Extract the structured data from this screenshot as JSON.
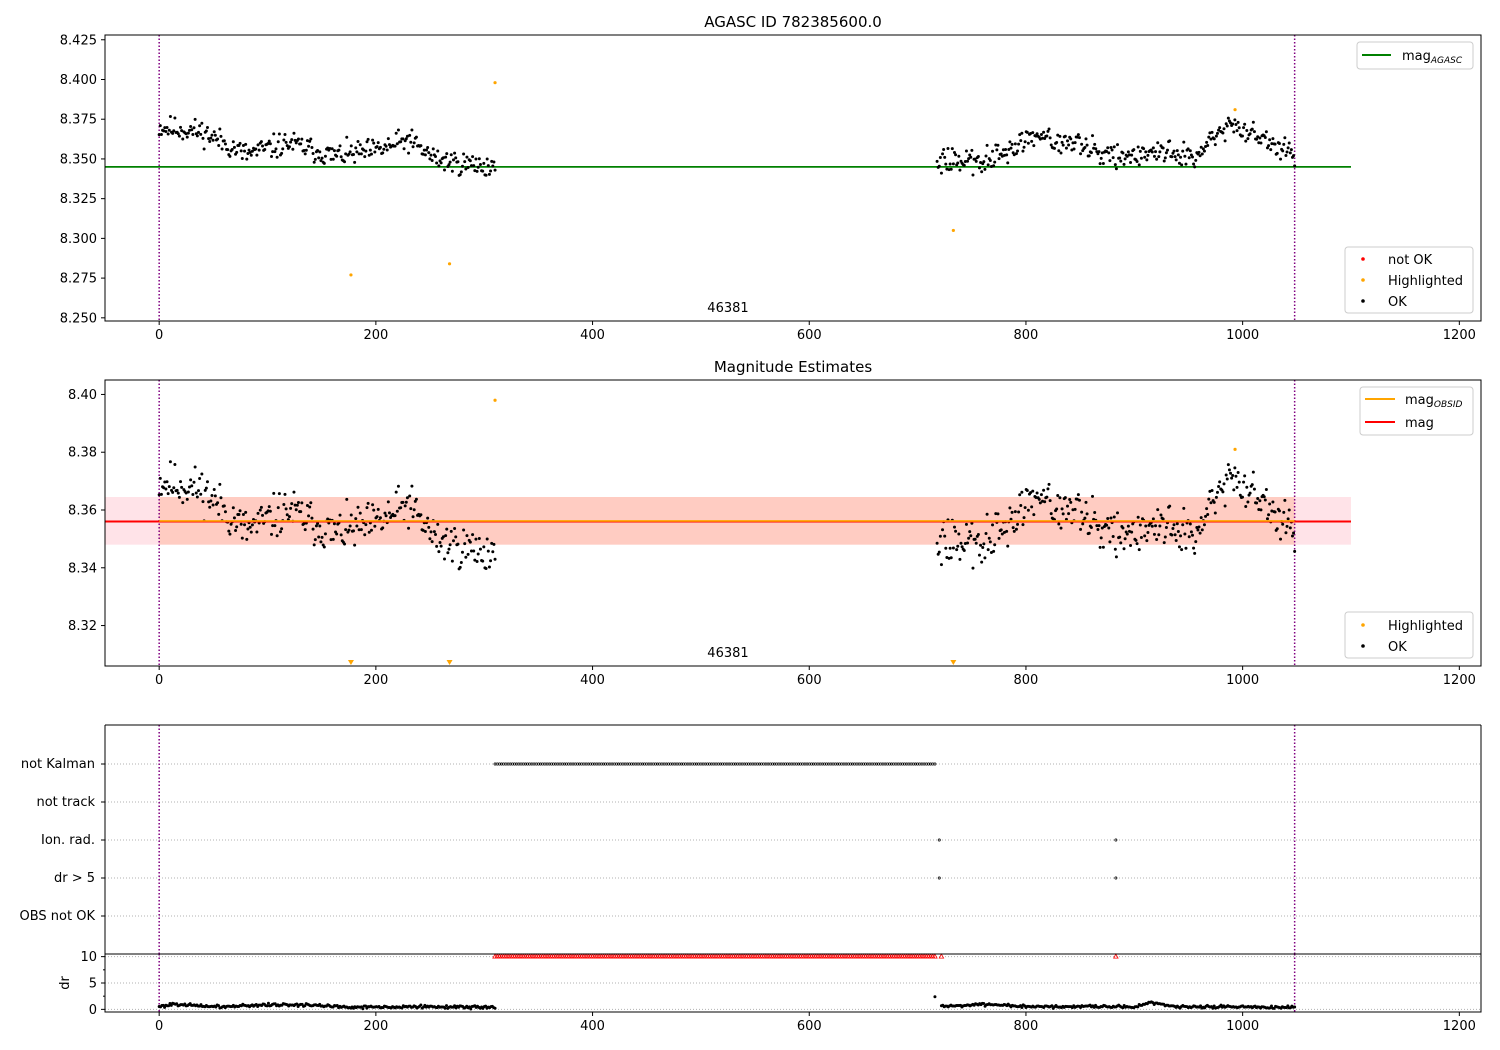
{
  "figure": {
    "colors": {
      "ok": "#000000",
      "highlighted": "#ffa500",
      "not_ok": "#ff0000",
      "mag_agasc": "#008000",
      "mag": "#ff0000",
      "mag_obsid": "#ffa500",
      "vline": "#800080",
      "band_outer": "#ffc0cb",
      "band_inner": "#ffa07a",
      "flag_grid": "#b0b0b0"
    }
  },
  "chart_data": [
    {
      "id": "top",
      "type": "scatter",
      "title": "AGASC ID 782385600.0",
      "xlim": [
        -50,
        1220
      ],
      "ylim": [
        8.248,
        8.428
      ],
      "x_ticks": [
        0,
        200,
        400,
        600,
        800,
        1000,
        1200
      ],
      "y_ticks": [
        8.25,
        8.275,
        8.3,
        8.325,
        8.35,
        8.375,
        8.4,
        8.425
      ],
      "y_tick_labels": [
        "8.250",
        "8.275",
        "8.300",
        "8.325",
        "8.350",
        "8.375",
        "8.400",
        "8.425"
      ],
      "obsid_label": {
        "text": "46381",
        "x": 525
      },
      "vlines": [
        0,
        1048
      ],
      "hlines": [
        {
          "name": "mag_AGASC",
          "y": 8.345,
          "x": [
            -50,
            1100
          ],
          "color": "#008000"
        }
      ],
      "legend_lines": [
        {
          "label": "mag",
          "sub": "AGASC",
          "color": "#008000"
        }
      ],
      "legend_markers": [
        {
          "label": "not OK",
          "color": "#ff0000"
        },
        {
          "label": "Highlighted",
          "color": "#ffa500"
        },
        {
          "label": "OK",
          "color": "#000000"
        }
      ],
      "series": [
        {
          "name": "OK",
          "color": "#000000",
          "segments": [
            {
              "x": [
                0,
                310
              ],
              "mid": [
                [
                  0,
                  8.37
                ],
                [
                  40,
                  8.367
                ],
                [
                  80,
                  8.353
                ],
                [
                  120,
                  8.36
                ],
                [
                  160,
                  8.352
                ],
                [
                  200,
                  8.355
                ],
                [
                  230,
                  8.362
                ],
                [
                  255,
                  8.35
                ],
                [
                  280,
                  8.347
                ],
                [
                  310,
                  8.345
                ]
              ],
              "spread": 0.0065,
              "n": 300
            },
            {
              "x": [
                718,
                1048
              ],
              "mid": [
                [
                  718,
                  8.35
                ],
                [
                  760,
                  8.348
                ],
                [
                  800,
                  8.362
                ],
                [
                  840,
                  8.362
                ],
                [
                  880,
                  8.35
                ],
                [
                  920,
                  8.355
                ],
                [
                  960,
                  8.352
                ],
                [
                  990,
                  8.372
                ],
                [
                  1010,
                  8.365
                ],
                [
                  1048,
                  8.352
                ]
              ],
              "spread": 0.0065,
              "n": 330
            }
          ]
        },
        {
          "name": "Highlighted",
          "color": "#ffa500",
          "points": [
            [
              177,
              8.277
            ],
            [
              268,
              8.284
            ],
            [
              310,
              8.398
            ],
            [
              733,
              8.305
            ],
            [
              993,
              8.381
            ]
          ]
        }
      ]
    },
    {
      "id": "mid",
      "type": "scatter",
      "title": "Magnitude Estimates",
      "xlim": [
        -50,
        1220
      ],
      "ylim": [
        8.306,
        8.405
      ],
      "x_ticks": [
        0,
        200,
        400,
        600,
        800,
        1000,
        1200
      ],
      "y_ticks": [
        8.32,
        8.34,
        8.36,
        8.38,
        8.4
      ],
      "y_tick_labels": [
        "8.32",
        "8.34",
        "8.36",
        "8.38",
        "8.40"
      ],
      "obsid_label": {
        "text": "46381",
        "x": 525
      },
      "vlines": [
        0,
        1048
      ],
      "bands": [
        {
          "x": [
            -50,
            1100
          ],
          "y": [
            8.348,
            8.3645
          ],
          "color": "#ffc0cb",
          "opacity": 0.45
        },
        {
          "x": [
            0,
            1048
          ],
          "y": [
            8.348,
            8.3645
          ],
          "color": "#ffa07a",
          "opacity": 0.35
        }
      ],
      "hlines": [
        {
          "name": "mag",
          "y": 8.356,
          "x": [
            -50,
            1100
          ],
          "color": "#ff0000"
        },
        {
          "name": "mag_OBSID",
          "y": 8.3562,
          "x": [
            0,
            1048
          ],
          "color": "#ffa500"
        }
      ],
      "legend_lines": [
        {
          "label": "mag",
          "sub": "OBSID",
          "color": "#ffa500"
        },
        {
          "label": "mag",
          "sub": "",
          "color": "#ff0000"
        }
      ],
      "legend_markers": [
        {
          "label": "Highlighted",
          "color": "#ffa500"
        },
        {
          "label": "OK",
          "color": "#000000"
        }
      ],
      "series": [
        {
          "name": "OK",
          "color": "#000000",
          "segments": [
            {
              "x": [
                0,
                310
              ],
              "mid": [
                [
                  0,
                  8.37
                ],
                [
                  40,
                  8.367
                ],
                [
                  80,
                  8.353
                ],
                [
                  120,
                  8.36
                ],
                [
                  160,
                  8.352
                ],
                [
                  200,
                  8.355
                ],
                [
                  230,
                  8.362
                ],
                [
                  255,
                  8.35
                ],
                [
                  280,
                  8.347
                ],
                [
                  310,
                  8.345
                ]
              ],
              "spread": 0.0065,
              "n": 300
            },
            {
              "x": [
                718,
                1048
              ],
              "mid": [
                [
                  718,
                  8.35
                ],
                [
                  760,
                  8.348
                ],
                [
                  800,
                  8.362
                ],
                [
                  840,
                  8.362
                ],
                [
                  880,
                  8.35
                ],
                [
                  920,
                  8.355
                ],
                [
                  960,
                  8.352
                ],
                [
                  990,
                  8.372
                ],
                [
                  1010,
                  8.365
                ],
                [
                  1048,
                  8.352
                ]
              ],
              "spread": 0.0065,
              "n": 330
            }
          ]
        },
        {
          "name": "Highlighted",
          "color": "#ffa500",
          "points": [
            [
              310,
              8.398
            ],
            [
              993,
              8.381
            ]
          ]
        }
      ],
      "below_range_markers": {
        "color": "#ffa500",
        "x": [
          177,
          268,
          733
        ]
      }
    },
    {
      "id": "flags",
      "type": "scatter",
      "xlim": [
        -50,
        1220
      ],
      "categories": [
        "not Kalman",
        "not track",
        "Ion. rad.",
        "dr > 5",
        "OBS not OK"
      ],
      "vlines": [
        0,
        1048
      ],
      "series": [
        {
          "name": "not Kalman",
          "color": "#000000",
          "x_range": [
            310,
            717
          ],
          "step": 2
        },
        {
          "name": "not track",
          "color": "#000000",
          "x": []
        },
        {
          "name": "Ion. rad.",
          "color": "#000000",
          "x": [
            720,
            883
          ]
        },
        {
          "name": "dr > 5",
          "color": "#000000",
          "x": [
            720,
            883
          ]
        },
        {
          "name": "OBS not OK",
          "color": "#000000",
          "x": []
        }
      ]
    },
    {
      "id": "dr",
      "type": "scatter",
      "ylabel": "dr",
      "xlim": [
        -50,
        1220
      ],
      "ylim": [
        -0.5,
        10.5
      ],
      "x_ticks": [
        0,
        200,
        400,
        600,
        800,
        1000,
        1200
      ],
      "y_ticks": [
        0,
        5,
        10
      ],
      "y_tick_labels": [
        "0",
        "5",
        "10"
      ],
      "vlines": [
        0,
        1048
      ],
      "series": [
        {
          "name": "dr",
          "color": "#000000",
          "segments": [
            {
              "x": [
                0,
                310
              ],
              "mid": [
                [
                  0,
                  0.5
                ],
                [
                  15,
                  1.1
                ],
                [
                  30,
                  0.7
                ],
                [
                  60,
                  0.5
                ],
                [
                  100,
                  0.9
                ],
                [
                  140,
                  0.8
                ],
                [
                  180,
                  0.4
                ],
                [
                  220,
                  0.5
                ],
                [
                  310,
                  0.4
                ]
              ],
              "spread": 0.25,
              "n": 250
            },
            {
              "x": [
                722,
                1048
              ],
              "mid": [
                [
                  722,
                  0.6
                ],
                [
                  760,
                  0.9
                ],
                [
                  800,
                  0.5
                ],
                [
                  850,
                  0.5
                ],
                [
                  900,
                  0.4
                ],
                [
                  915,
                  1.3
                ],
                [
                  940,
                  0.5
                ],
                [
                  1048,
                  0.4
                ]
              ],
              "spread": 0.25,
              "n": 260
            }
          ]
        },
        {
          "name": "dr single",
          "color": "#000000",
          "points": [
            [
              716,
              2.4
            ]
          ]
        },
        {
          "name": "dr clipped",
          "color": "#ff0000",
          "marker": "triangle",
          "x_range": [
            310,
            717
          ],
          "step": 2,
          "y": 10
        },
        {
          "name": "dr clipped isolated",
          "color": "#ff0000",
          "marker": "triangle",
          "points": [
            [
              722,
              10
            ],
            [
              883,
              10
            ]
          ]
        }
      ]
    }
  ]
}
